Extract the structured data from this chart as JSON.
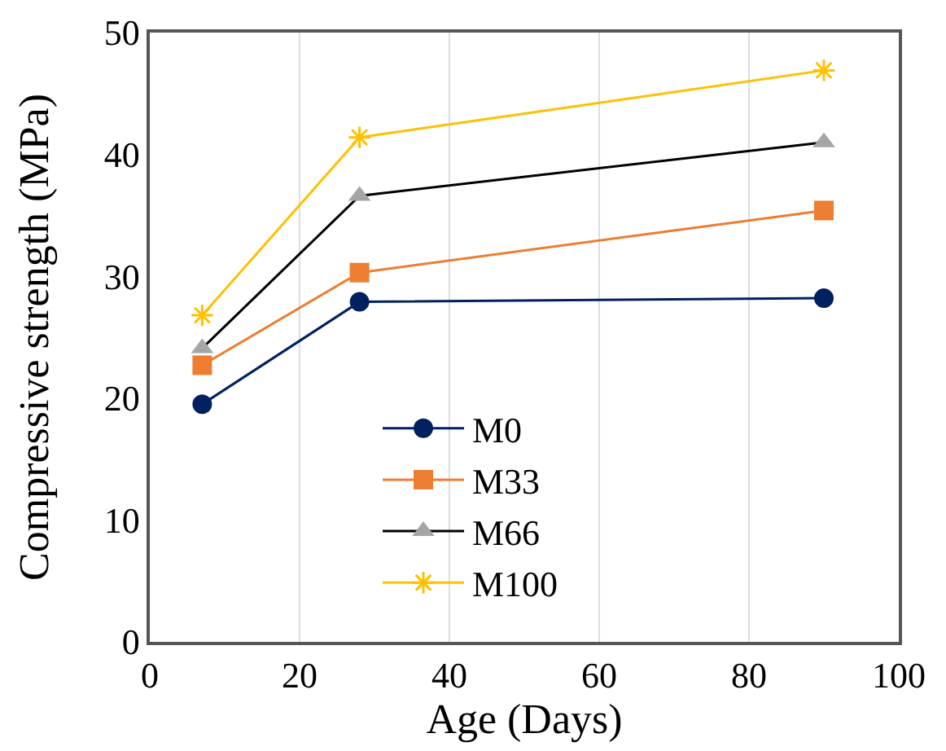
{
  "chart_data": {
    "type": "line",
    "xlabel": "Age (Days)",
    "ylabel": "Compressive strength (MPa)",
    "x": [
      7,
      28,
      90
    ],
    "series": [
      {
        "name": "M0",
        "color": "#002060",
        "marker": "circle",
        "values": [
          19.5,
          27.9,
          28.2
        ]
      },
      {
        "name": "M33",
        "color": "#ed7d31",
        "marker": "square",
        "values": [
          22.7,
          30.3,
          35.4
        ]
      },
      {
        "name": "M66",
        "color": "#000000",
        "marker": "triangle",
        "values": [
          24.1,
          36.6,
          41.0
        ]
      },
      {
        "name": "M100",
        "color": "#ffc000",
        "marker": "cross",
        "values": [
          26.8,
          41.4,
          46.9
        ]
      }
    ],
    "xlim": [
      0,
      100
    ],
    "xticks": [
      0,
      20,
      40,
      60,
      80,
      100
    ],
    "ylim": [
      0,
      50
    ],
    "yticks": [
      0,
      10,
      20,
      30,
      40,
      50
    ],
    "grid": "x",
    "legend": "bottom left",
    "line_style": "solid"
  }
}
